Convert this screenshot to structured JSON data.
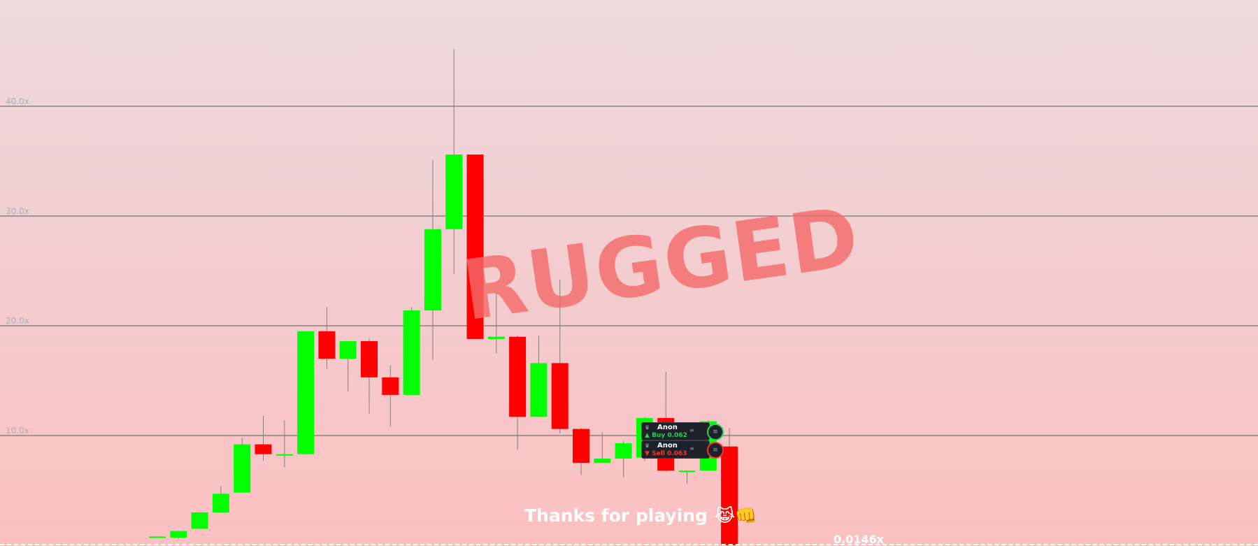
{
  "chart_data": {
    "type": "candlestick",
    "y_axis": {
      "unit": "x",
      "ylim": [
        0,
        50
      ],
      "ticks": [
        {
          "value": 10,
          "label": "10.0x"
        },
        {
          "value": 20,
          "label": "20.0x"
        },
        {
          "value": 30,
          "label": "30.0x"
        },
        {
          "value": 40,
          "label": "40.0x"
        }
      ]
    },
    "grid": true,
    "colors": {
      "up": "#00ff00",
      "down": "#ff0000",
      "wick": "#808080"
    },
    "candles": [
      {
        "open": 0.8,
        "close": 0.8,
        "high": 0.8,
        "low": 0.7
      },
      {
        "open": 0.7,
        "close": 1.3,
        "high": 1.3,
        "low": 0.6
      },
      {
        "open": 1.5,
        "close": 3.0,
        "high": 3.0,
        "low": 1.5
      },
      {
        "open": 3.0,
        "close": 4.7,
        "high": 5.4,
        "low": 3.0
      },
      {
        "open": 4.8,
        "close": 9.2,
        "high": 9.8,
        "low": 4.8
      },
      {
        "open": 9.2,
        "close": 8.3,
        "high": 11.8,
        "low": 7.7
      },
      {
        "open": 8.3,
        "close": 8.3,
        "high": 11.4,
        "low": 7.1
      },
      {
        "open": 8.3,
        "close": 19.5,
        "high": 19.5,
        "low": 8.3
      },
      {
        "open": 19.5,
        "close": 17.0,
        "high": 21.7,
        "low": 16.1
      },
      {
        "open": 17.0,
        "close": 18.6,
        "high": 18.6,
        "low": 14.0
      },
      {
        "open": 18.6,
        "close": 15.3,
        "high": 18.8,
        "low": 12.0
      },
      {
        "open": 15.3,
        "close": 13.7,
        "high": 16.4,
        "low": 10.8
      },
      {
        "open": 13.7,
        "close": 21.4,
        "high": 21.7,
        "low": 13.7
      },
      {
        "open": 21.4,
        "close": 28.8,
        "high": 35.1,
        "low": 16.9
      },
      {
        "open": 28.8,
        "close": 35.6,
        "high": 45.2,
        "low": 24.7
      },
      {
        "open": 35.6,
        "close": 18.8,
        "high": 35.6,
        "low": 18.8
      },
      {
        "open": 18.8,
        "close": 19.0,
        "high": 23.0,
        "low": 17.5
      },
      {
        "open": 19.0,
        "close": 11.7,
        "high": 19.1,
        "low": 8.7
      },
      {
        "open": 11.7,
        "close": 16.6,
        "high": 19.1,
        "low": 11.7
      },
      {
        "open": 16.6,
        "close": 10.6,
        "high": 24.2,
        "low": 10.2
      },
      {
        "open": 10.6,
        "close": 7.5,
        "high": 10.7,
        "low": 6.4
      },
      {
        "open": 7.5,
        "close": 7.9,
        "high": 10.3,
        "low": 7.5
      },
      {
        "open": 7.9,
        "close": 9.3,
        "high": 9.5,
        "low": 6.2
      },
      {
        "open": 8.0,
        "close": 11.6,
        "high": 11.7,
        "low": 7.7
      },
      {
        "open": 11.6,
        "close": 6.8,
        "high": 15.8,
        "low": 6.7
      },
      {
        "open": 6.8,
        "close": 6.8,
        "high": 6.8,
        "low": 5.6
      },
      {
        "open": 6.8,
        "close": 11.3,
        "high": 11.4,
        "low": 6.8
      },
      {
        "open": 9.0,
        "close": 0.0146,
        "high": 10.7,
        "low": 0.0146
      }
    ]
  },
  "watermark": "RUGGED",
  "footer_message": "Thanks for playing",
  "footer_emoji": "😹👊",
  "current_multiplier": "0.0146x",
  "trades": [
    {
      "name": "Anon",
      "action": "Buy 0.062",
      "side": "buy",
      "icon": "crown-icon"
    },
    {
      "name": "Anon",
      "action": "Sell 0.063",
      "side": "sell",
      "icon": "crown-icon"
    }
  ]
}
